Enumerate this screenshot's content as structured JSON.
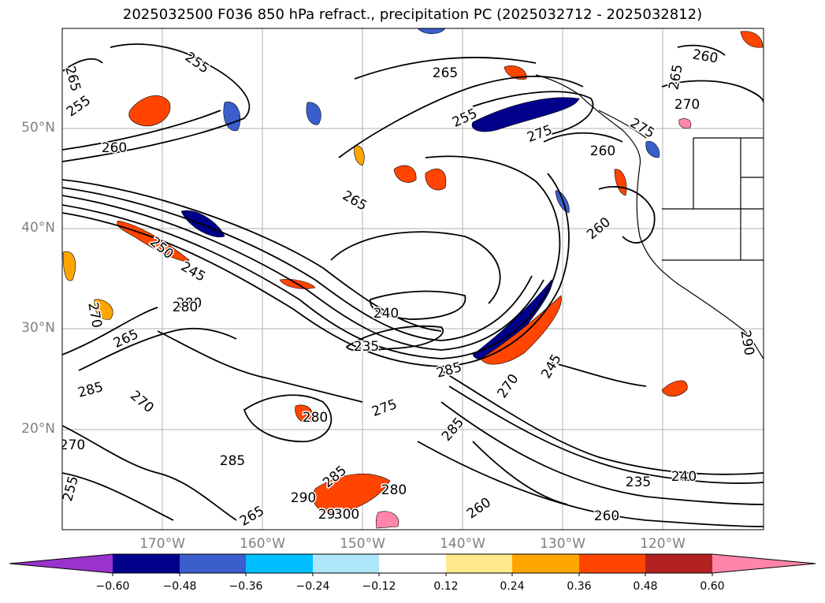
{
  "title": "2025032500 F036 850 hPa refract., precipitation PC (2025032712 - 2025032812)",
  "lat_labels": [
    "50°N",
    "40°N",
    "30°N",
    "20°N"
  ],
  "lon_labels": [
    "170°W",
    "160°W",
    "150°W",
    "140°W",
    "130°W",
    "120°W"
  ],
  "colorbar": {
    "colors": [
      "#9933cc",
      "#00008b",
      "#3a5fcd",
      "#00bfff",
      "#aee6fa",
      "#ffffff",
      "#ffe98c",
      "#ffa500",
      "#ff4500",
      "#b22222",
      "#ff86a8"
    ],
    "tick_labels": [
      "−0.60",
      "−0.48",
      "−0.36",
      "−0.24",
      "−0.12",
      "0.12",
      "0.24",
      "0.36",
      "0.48",
      "0.60"
    ]
  },
  "contour_labels": [
    {
      "text": "265",
      "color": "#000"
    },
    {
      "text": "255",
      "color": "#000"
    },
    {
      "text": "255",
      "color": "#000"
    },
    {
      "text": "260",
      "color": "#000"
    },
    {
      "text": "265",
      "color": "#000"
    },
    {
      "text": "260",
      "color": "#000"
    },
    {
      "text": "255",
      "color": "#000"
    },
    {
      "text": "275",
      "color": "#000"
    },
    {
      "text": "270",
      "color": "#000"
    },
    {
      "text": "275",
      "color": "#000"
    },
    {
      "text": "260",
      "color": "#000"
    },
    {
      "text": "265",
      "color": "#000"
    },
    {
      "text": "265",
      "color": "#000"
    },
    {
      "text": "260",
      "color": "#000"
    },
    {
      "text": "250",
      "color": "#000"
    },
    {
      "text": "245",
      "color": "#000"
    },
    {
      "text": "280",
      "color": "#000"
    },
    {
      "text": "240",
      "color": "#000"
    },
    {
      "text": "235",
      "color": "#000"
    },
    {
      "text": "270",
      "color": "#000"
    },
    {
      "text": "285",
      "color": "#000"
    },
    {
      "text": "285",
      "color": "#000"
    },
    {
      "text": "275",
      "color": "#000"
    },
    {
      "text": "270",
      "color": "#000"
    },
    {
      "text": "245",
      "color": "#000"
    },
    {
      "text": "280",
      "color": "#000"
    },
    {
      "text": "280",
      "color": "#000"
    },
    {
      "text": "285",
      "color": "#000"
    },
    {
      "text": "285",
      "color": "#000"
    },
    {
      "text": "270",
      "color": "#000"
    },
    {
      "text": "235",
      "color": "#000"
    },
    {
      "text": "240",
      "color": "#000"
    },
    {
      "text": "260",
      "color": "#000"
    },
    {
      "text": "280",
      "color": "#000"
    },
    {
      "text": "295",
      "color": "#000"
    },
    {
      "text": "300",
      "color": "#000"
    },
    {
      "text": "260",
      "color": "#000"
    },
    {
      "text": "290",
      "color": "#000"
    },
    {
      "text": "255",
      "color": "#000"
    },
    {
      "text": "265",
      "color": "#000"
    },
    {
      "text": "270",
      "color": "#000"
    },
    {
      "text": "265",
      "color": "#000"
    },
    {
      "text": "285",
      "color": "#000"
    },
    {
      "text": "290",
      "color": "#000"
    }
  ]
}
